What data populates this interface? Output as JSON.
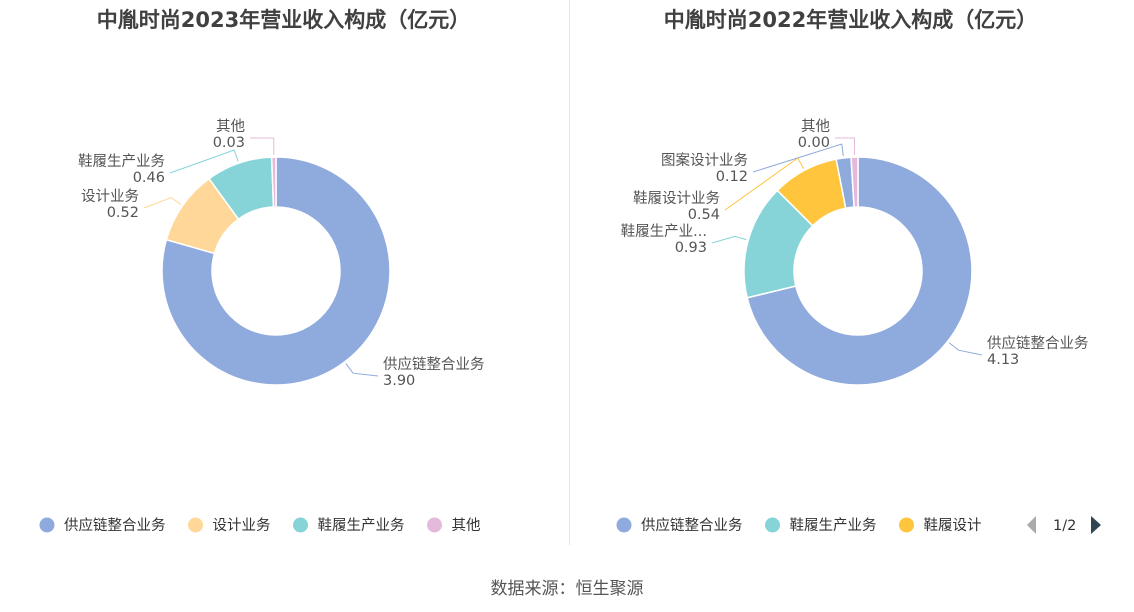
{
  "colors": {
    "supply": "#8faadc",
    "design": "#ffd899",
    "shoes": "#86d3d8",
    "other": "#e4b9db",
    "pattern": "#8faadc",
    "shoe_design": "#ffc53d"
  },
  "chart_data": [
    {
      "type": "pie",
      "title": "中胤时尚2023年营业收入构成（亿元）",
      "series": [
        {
          "name": "供应链整合业务",
          "value": 3.9,
          "label": "3.90",
          "color": "#8faadc"
        },
        {
          "name": "设计业务",
          "value": 0.52,
          "label": "0.52",
          "color": "#ffd899"
        },
        {
          "name": "鞋履生产业务",
          "value": 0.46,
          "label": "0.46",
          "color": "#86d3d8"
        },
        {
          "name": "其他",
          "value": 0.03,
          "label": "0.03",
          "color": "#e4b9db"
        }
      ],
      "legend": {
        "placement": "bottom",
        "items": [
          "供应链整合业务",
          "设计业务",
          "鞋履生产业务",
          "其他"
        ]
      }
    },
    {
      "type": "pie",
      "title": "中胤时尚2022年营业收入构成（亿元）",
      "series": [
        {
          "name": "供应链整合业务",
          "value": 4.13,
          "label": "4.13",
          "display_name": "供应链整合业务",
          "color": "#8faadc"
        },
        {
          "name": "鞋履生产业务",
          "value": 0.93,
          "label": "0.93",
          "display_name": "鞋履生产业...",
          "color": "#86d3d8"
        },
        {
          "name": "鞋履设计业务",
          "value": 0.54,
          "label": "0.54",
          "display_name": "鞋履设计业务",
          "color": "#ffc53d"
        },
        {
          "name": "图案设计业务",
          "value": 0.12,
          "label": "0.12",
          "display_name": "图案设计业务",
          "color": "#8faadc"
        },
        {
          "name": "其他",
          "value": 0.0,
          "label": "0.00",
          "display_name": "其他",
          "color": "#e4b9db"
        }
      ],
      "legend": {
        "placement": "bottom",
        "items": [
          "供应链整合业务",
          "鞋履生产业务",
          "鞋履设计"
        ],
        "page_indicator": "1/2"
      }
    }
  ],
  "source_text": "数据来源：恒生聚源"
}
